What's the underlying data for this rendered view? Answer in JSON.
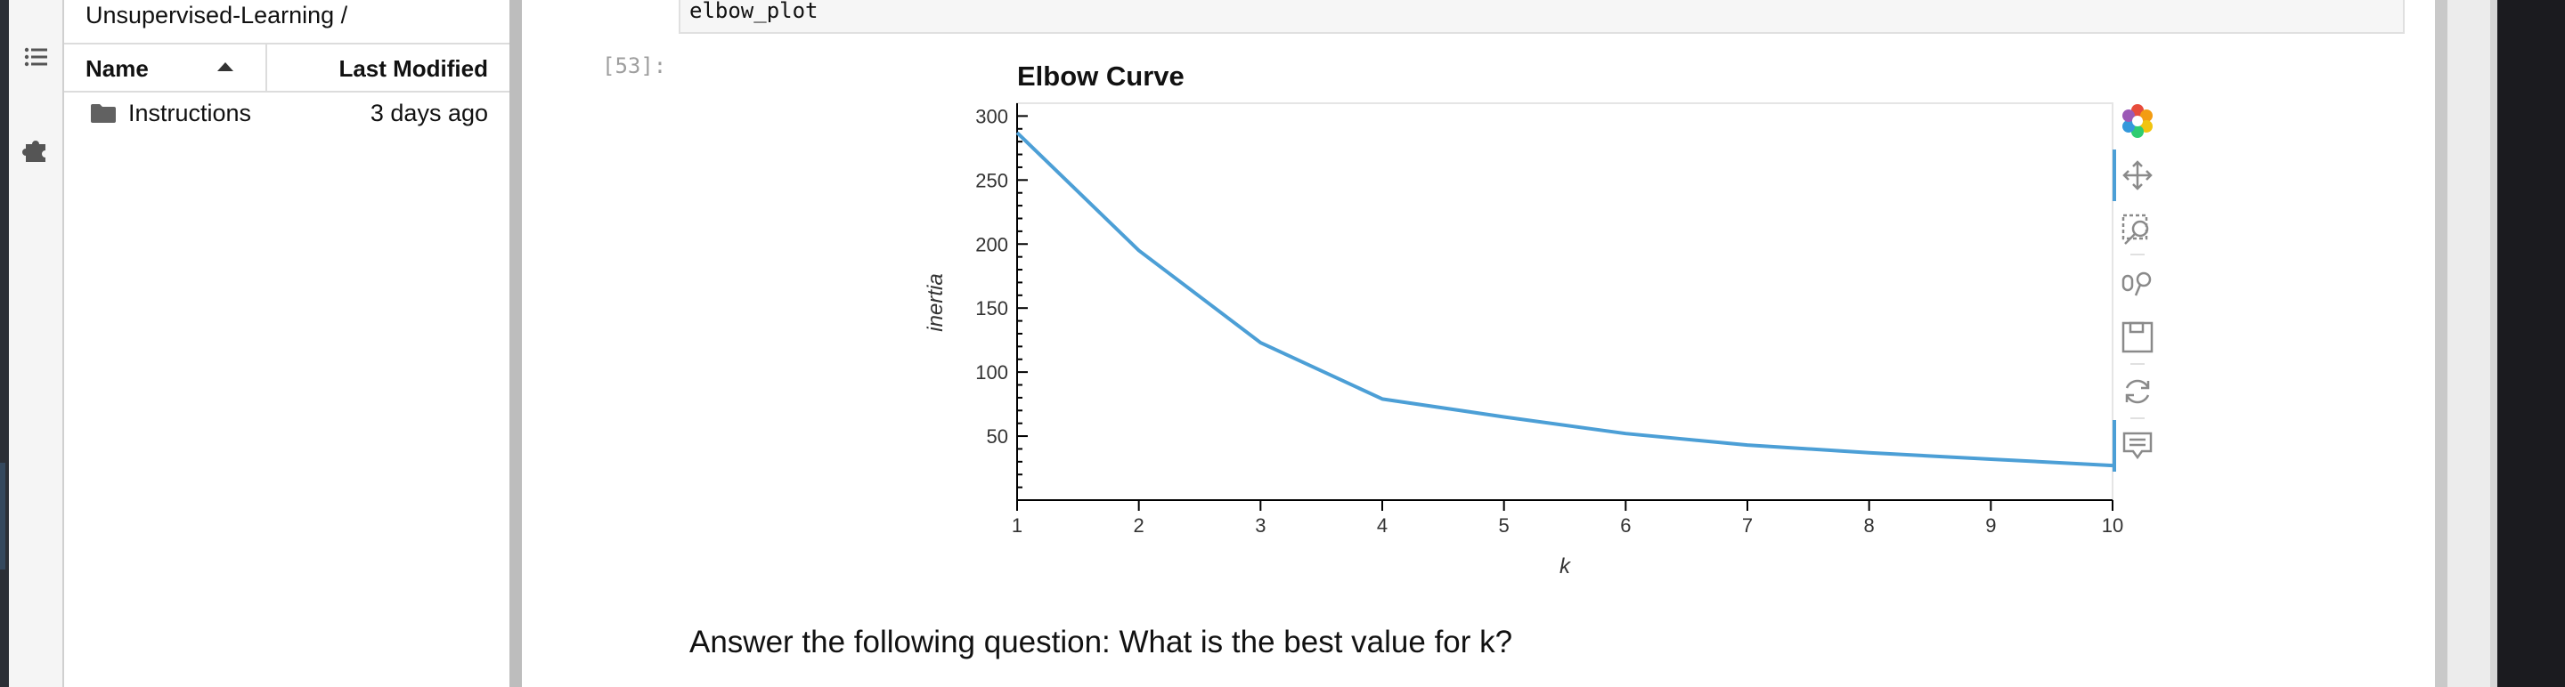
{
  "file_browser": {
    "breadcrumb": "Unsupervised-Learning /",
    "columns": {
      "name": "Name",
      "modified": "Last Modified"
    },
    "items": [
      {
        "name": "Instructions",
        "modified": "3 days ago",
        "icon": "folder-icon"
      }
    ]
  },
  "activity_bar": {
    "icons": [
      "table-of-contents-icon",
      "extension-icon"
    ]
  },
  "notebook": {
    "code_cell_text": "elbow_plot",
    "output_prompt": "[53]:",
    "markdown_text": "Answer the following question: What is the best value for k?"
  },
  "toolbar": {
    "icons": [
      "bokeh-logo-icon",
      "pan-icon",
      "box-zoom-icon",
      "wheel-zoom-icon",
      "save-icon",
      "reset-icon",
      "hover-icon"
    ]
  },
  "colors": {
    "line": "#4c9fd6",
    "accent": "#4c9fd6"
  },
  "chart_data": {
    "type": "line",
    "title": "Elbow Curve",
    "xlabel": "k",
    "ylabel": "inertia",
    "x": [
      1,
      2,
      3,
      4,
      5,
      6,
      7,
      8,
      9,
      10
    ],
    "series": [
      {
        "values": [
          287,
          195,
          123,
          79,
          65,
          52,
          43,
          37,
          32,
          27
        ]
      }
    ],
    "xlim": [
      1,
      10
    ],
    "ylim": [
      0,
      310
    ],
    "xticks": [
      1,
      2,
      3,
      4,
      5,
      6,
      7,
      8,
      9,
      10
    ],
    "yticks": [
      50,
      100,
      150,
      200,
      250,
      300
    ],
    "grid": false
  }
}
